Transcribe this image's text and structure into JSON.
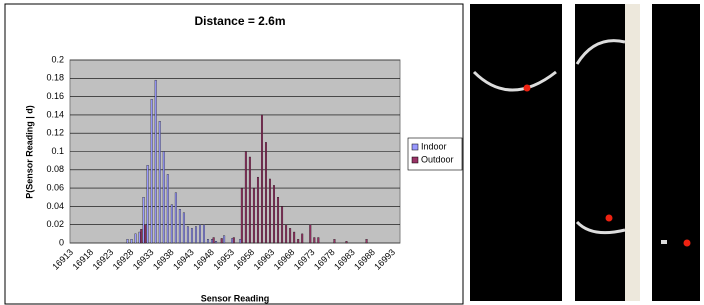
{
  "chart_data": {
    "type": "bar",
    "title": "Distance = 2.6m",
    "x_label": "Sensor Reading",
    "y_label": "P(Sensor Reading | d)",
    "categories": [
      16913,
      null,
      null,
      null,
      null,
      16918,
      null,
      null,
      null,
      null,
      16923,
      null,
      null,
      null,
      null,
      16928,
      null,
      null,
      null,
      null,
      16933,
      null,
      null,
      null,
      null,
      16938,
      null,
      null,
      null,
      null,
      16943,
      null,
      null,
      null,
      null,
      16948,
      null,
      null,
      null,
      null,
      16953,
      null,
      null,
      null,
      null,
      16958,
      null,
      null,
      null,
      null,
      16963,
      null,
      null,
      null,
      null,
      16968,
      null,
      null,
      null,
      null,
      16973,
      null,
      null,
      null,
      null,
      16978,
      null,
      null,
      null,
      null,
      16983,
      null,
      null,
      null,
      null,
      16988,
      null,
      null,
      null,
      null,
      16993,
      null
    ],
    "series": [
      {
        "name": "Indoor",
        "color": "#9999ff",
        "values": [
          0,
          0,
          0,
          0,
          0,
          0,
          0,
          0,
          0,
          0,
          0,
          0,
          0,
          0,
          0.004,
          0.004,
          0.01,
          0.012,
          0.05,
          0.085,
          0.157,
          0.178,
          0.133,
          0.1,
          0.075,
          0.042,
          0.055,
          0.037,
          0.033,
          0.018,
          0.016,
          0.018,
          0.02,
          0.02,
          0.004,
          0.004,
          0.002,
          0,
          0.008,
          0,
          0.005,
          0,
          0.004,
          0,
          0,
          0,
          0,
          0,
          0,
          0,
          0,
          0,
          0,
          0,
          0,
          0,
          0,
          0,
          0,
          0,
          0,
          0,
          0,
          0,
          0,
          0,
          0,
          0,
          0,
          0,
          0,
          0,
          0,
          0,
          0,
          0,
          0,
          0,
          0,
          0,
          0,
          0
        ]
      },
      {
        "name": "Outdoor",
        "color": "#993366",
        "values": [
          0,
          0,
          0,
          0,
          0,
          0,
          0,
          0,
          0,
          0,
          0,
          0,
          0,
          0,
          0,
          0,
          0,
          0.015,
          0.02,
          0,
          0,
          0,
          0,
          0,
          0,
          0,
          0,
          0,
          0,
          0,
          0,
          0,
          0,
          0,
          0,
          0.006,
          0,
          0.005,
          0,
          0,
          0.006,
          0,
          0.06,
          0.1,
          0.094,
          0.06,
          0.072,
          0.14,
          0.11,
          0.07,
          0.063,
          0.05,
          0.04,
          0.02,
          0.016,
          0.012,
          0.004,
          0.01,
          0,
          0.02,
          0.006,
          0.006,
          0,
          0,
          0,
          0.004,
          0,
          0,
          0.002,
          0,
          0,
          0,
          0,
          0.004,
          0,
          0,
          0,
          0,
          0,
          0,
          0,
          0
        ]
      }
    ],
    "ylim": [
      0,
      0.2
    ],
    "yticks": [
      0,
      0.02,
      0.04,
      0.06,
      0.08,
      0.1,
      0.12,
      0.14,
      0.16,
      0.18,
      0.2
    ],
    "grid": true
  }
}
